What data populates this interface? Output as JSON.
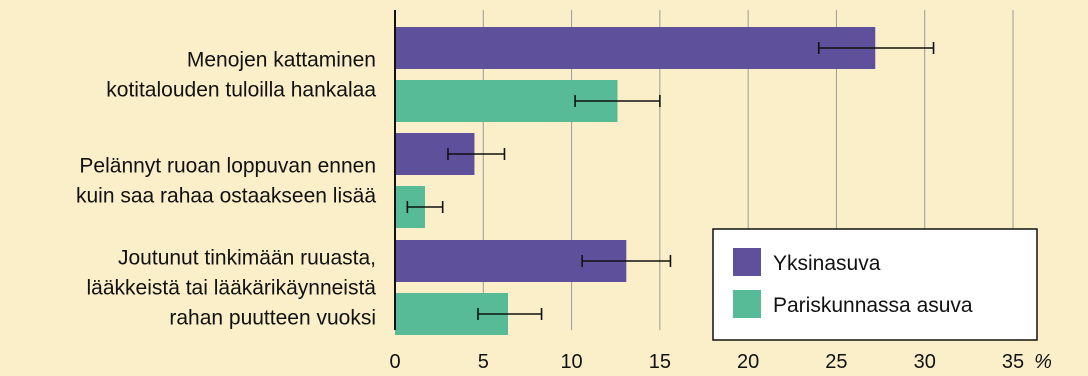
{
  "chart_data": {
    "type": "bar",
    "orientation": "horizontal",
    "categories": [
      [
        "Menojen kattaminen",
        "kotitalouden tuloilla hankalaa"
      ],
      [
        "Pelännyt ruoan loppuvan ennen",
        "kuin saa rahaa ostaakseen lisää"
      ],
      [
        "Joutunut tinkimään ruuasta,",
        "lääkkeistä tai lääkärikäynneistä",
        "rahan puutteen vuoksi"
      ]
    ],
    "series": [
      {
        "name": "Yksinasuva",
        "color": "#5f509c",
        "values": [
          27.2,
          4.5,
          13.1
        ],
        "error_low": [
          24.0,
          3.0,
          10.6
        ],
        "error_high": [
          30.5,
          6.2,
          15.6
        ]
      },
      {
        "name": "Pariskunnassa asuva",
        "color": "#57bb97",
        "values": [
          12.6,
          1.7,
          6.4
        ],
        "error_low": [
          10.2,
          0.7,
          4.7
        ],
        "error_high": [
          15.0,
          2.7,
          8.3
        ]
      }
    ],
    "x_ticks": [
      0,
      5,
      10,
      15,
      20,
      25,
      30,
      35
    ],
    "x_unit": "%",
    "xlim": [
      0,
      35
    ],
    "grid": true,
    "legend_position": "bottom-right",
    "background": "#fbefc9"
  }
}
